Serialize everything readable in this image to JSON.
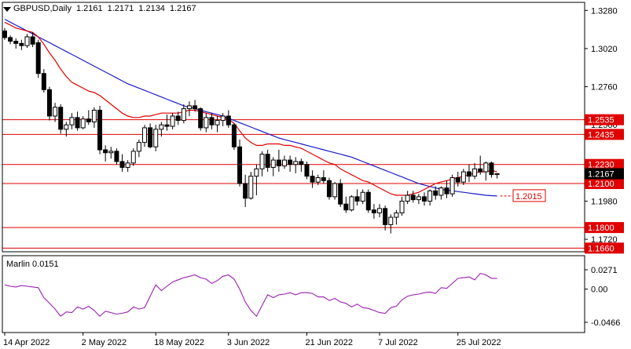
{
  "header": {
    "symbol_tf": "GBPUSD,Daily",
    "open": "1.2161",
    "high": "1.2171",
    "low": "1.2134",
    "close": "1.2167"
  },
  "oscillator": {
    "name": "Marlin",
    "value": "0.0151"
  },
  "colors": {
    "bull": "#000000",
    "bear": "#000000",
    "ma_fast": "#e00000",
    "ma_slow": "#1a1acc",
    "level": "#e00000",
    "osc": "#9b1fb0",
    "label_bg": "#e00000"
  },
  "chart_data": [
    {
      "type": "candlestick",
      "title": "GBPUSD,Daily",
      "ylim": [
        1.1635,
        1.3335
      ],
      "y_ticks": [
        "1.3280",
        "1.3020",
        "1.2760",
        "1.2500",
        "1.1980",
        "1.1720"
      ],
      "x_tick_labels": [
        "14 Apr 2022",
        "2 May 2022",
        "18 May 2022",
        "3 Jun 2022",
        "21 Jun 2022",
        "7 Jul 2022",
        "25 Jul 2022"
      ],
      "x_tick_index": [
        0,
        14,
        27,
        40,
        54,
        67,
        81
      ],
      "levels": [
        {
          "value": 1.2535,
          "label": "1.2535"
        },
        {
          "value": 1.2435,
          "label": "1.2435"
        },
        {
          "value": 1.223,
          "label": "1.2230"
        },
        {
          "value": 1.21,
          "label": "1.2100"
        },
        {
          "value": 1.18,
          "label": "1.1800"
        },
        {
          "value": 1.166,
          "label": "1.1660"
        }
      ],
      "price_label": {
        "value": 1.2167,
        "label": "1.2167"
      },
      "ma_label": {
        "value": 1.2015,
        "label": "1.2015"
      },
      "candles": [
        [
          1.314,
          1.316,
          1.308,
          1.3095
        ],
        [
          1.3095,
          1.311,
          1.305,
          1.307
        ],
        [
          1.307,
          1.309,
          1.302,
          1.3055
        ],
        [
          1.3055,
          1.308,
          1.301,
          1.304
        ],
        [
          1.304,
          1.312,
          1.3025,
          1.31
        ],
        [
          1.31,
          1.313,
          1.303,
          1.305
        ],
        [
          1.306,
          1.308,
          1.282,
          1.285
        ],
        [
          1.285,
          1.288,
          1.272,
          1.274
        ],
        [
          1.274,
          1.276,
          1.253,
          1.256
        ],
        [
          1.256,
          1.265,
          1.252,
          1.262
        ],
        [
          1.262,
          1.264,
          1.244,
          1.247
        ],
        [
          1.247,
          1.252,
          1.242,
          1.25
        ],
        [
          1.25,
          1.258,
          1.247,
          1.255
        ],
        [
          1.255,
          1.259,
          1.246,
          1.248
        ],
        [
          1.248,
          1.256,
          1.247,
          1.254
        ],
        [
          1.254,
          1.26,
          1.25,
          1.252
        ],
        [
          1.252,
          1.262,
          1.248,
          1.26
        ],
        [
          1.26,
          1.263,
          1.23,
          1.233
        ],
        [
          1.233,
          1.236,
          1.225,
          1.231
        ],
        [
          1.231,
          1.235,
          1.227,
          1.232
        ],
        [
          1.232,
          1.234,
          1.223,
          1.225
        ],
        [
          1.225,
          1.23,
          1.218,
          1.221
        ],
        [
          1.221,
          1.226,
          1.218,
          1.224
        ],
        [
          1.224,
          1.234,
          1.222,
          1.232
        ],
        [
          1.232,
          1.24,
          1.228,
          1.238
        ],
        [
          1.238,
          1.25,
          1.235,
          1.248
        ],
        [
          1.248,
          1.251,
          1.234,
          1.235
        ],
        [
          1.235,
          1.25,
          1.232,
          1.247
        ],
        [
          1.247,
          1.252,
          1.242,
          1.25
        ],
        [
          1.25,
          1.257,
          1.246,
          1.249
        ],
        [
          1.249,
          1.258,
          1.247,
          1.256
        ],
        [
          1.256,
          1.259,
          1.25,
          1.253
        ],
        [
          1.253,
          1.264,
          1.251,
          1.261
        ],
        [
          1.261,
          1.266,
          1.256,
          1.263
        ],
        [
          1.263,
          1.267,
          1.259,
          1.261
        ],
        [
          1.261,
          1.262,
          1.246,
          1.248
        ],
        [
          1.248,
          1.258,
          1.245,
          1.255
        ],
        [
          1.255,
          1.258,
          1.247,
          1.25
        ],
        [
          1.25,
          1.256,
          1.245,
          1.253
        ],
        [
          1.253,
          1.258,
          1.249,
          1.256
        ],
        [
          1.256,
          1.26,
          1.248,
          1.25
        ],
        [
          1.25,
          1.251,
          1.233,
          1.235
        ],
        [
          1.235,
          1.24,
          1.208,
          1.21
        ],
        [
          1.21,
          1.216,
          1.194,
          1.2
        ],
        [
          1.2,
          1.218,
          1.199,
          1.215
        ],
        [
          1.215,
          1.223,
          1.202,
          1.22
        ],
        [
          1.22,
          1.232,
          1.215,
          1.23
        ],
        [
          1.23,
          1.233,
          1.218,
          1.221
        ],
        [
          1.221,
          1.228,
          1.215,
          1.226
        ],
        [
          1.226,
          1.233,
          1.218,
          1.222
        ],
        [
          1.222,
          1.229,
          1.22,
          1.226
        ],
        [
          1.226,
          1.229,
          1.218,
          1.223
        ],
        [
          1.223,
          1.228,
          1.217,
          1.225
        ],
        [
          1.225,
          1.227,
          1.218,
          1.223
        ],
        [
          1.223,
          1.225,
          1.213,
          1.215
        ],
        [
          1.215,
          1.219,
          1.207,
          1.211
        ],
        [
          1.211,
          1.216,
          1.209,
          1.214
        ],
        [
          1.214,
          1.219,
          1.21,
          1.212
        ],
        [
          1.212,
          1.214,
          1.199,
          1.201
        ],
        [
          1.201,
          1.211,
          1.199,
          1.21
        ],
        [
          1.21,
          1.213,
          1.194,
          1.196
        ],
        [
          1.196,
          1.201,
          1.19,
          1.192
        ],
        [
          1.192,
          1.202,
          1.191,
          1.201
        ],
        [
          1.201,
          1.206,
          1.195,
          1.198
        ],
        [
          1.198,
          1.206,
          1.196,
          1.204
        ],
        [
          1.204,
          1.206,
          1.19,
          1.192
        ],
        [
          1.192,
          1.196,
          1.186,
          1.19
        ],
        [
          1.19,
          1.196,
          1.187,
          1.193
        ],
        [
          1.193,
          1.195,
          1.178,
          1.182
        ],
        [
          1.182,
          1.189,
          1.176,
          1.187
        ],
        [
          1.187,
          1.192,
          1.182,
          1.19
        ],
        [
          1.19,
          1.201,
          1.188,
          1.198
        ],
        [
          1.198,
          1.205,
          1.196,
          1.202
        ],
        [
          1.202,
          1.205,
          1.197,
          1.199
        ],
        [
          1.199,
          1.203,
          1.196,
          1.201
        ],
        [
          1.201,
          1.204,
          1.195,
          1.198
        ],
        [
          1.198,
          1.206,
          1.195,
          1.205
        ],
        [
          1.205,
          1.208,
          1.199,
          1.202
        ],
        [
          1.202,
          1.208,
          1.199,
          1.207
        ],
        [
          1.207,
          1.212,
          1.2,
          1.203
        ],
        [
          1.203,
          1.216,
          1.201,
          1.214
        ],
        [
          1.214,
          1.218,
          1.208,
          1.211
        ],
        [
          1.211,
          1.22,
          1.209,
          1.218
        ],
        [
          1.218,
          1.223,
          1.211,
          1.215
        ],
        [
          1.215,
          1.224,
          1.213,
          1.22
        ],
        [
          1.22,
          1.229,
          1.216,
          1.218
        ],
        [
          1.218,
          1.225,
          1.212,
          1.224
        ],
        [
          1.224,
          1.225,
          1.214,
          1.2161
        ],
        [
          1.2161,
          1.2171,
          1.2134,
          1.2167
        ]
      ],
      "ma_fast": [
        1.32,
        1.318,
        1.316,
        1.315,
        1.314,
        1.313,
        1.31,
        1.305,
        1.299,
        1.294,
        1.288,
        1.283,
        1.279,
        1.277,
        1.275,
        1.273,
        1.272,
        1.27,
        1.267,
        1.264,
        1.261,
        1.258,
        1.256,
        1.255,
        1.255,
        1.256,
        1.256,
        1.257,
        1.258,
        1.258,
        1.258,
        1.258,
        1.259,
        1.26,
        1.26,
        1.259,
        1.258,
        1.257,
        1.256,
        1.255,
        1.254,
        1.251,
        1.246,
        1.241,
        1.238,
        1.236,
        1.236,
        1.237,
        1.237,
        1.237,
        1.236,
        1.236,
        1.235,
        1.234,
        1.232,
        1.23,
        1.228,
        1.226,
        1.224,
        1.223,
        1.22,
        1.218,
        1.216,
        1.214,
        1.212,
        1.211,
        1.209,
        1.207,
        1.205,
        1.203,
        1.202,
        1.202,
        1.202,
        1.203,
        1.204,
        1.206,
        1.208,
        1.21,
        1.211,
        1.212,
        1.213,
        1.214,
        1.215,
        1.216,
        1.217,
        1.218,
        1.218,
        1.219,
        1.218
      ],
      "ma_slow": [
        1.322,
        1.32,
        1.318,
        1.316,
        1.314,
        1.312,
        1.31,
        1.308,
        1.306,
        1.304,
        1.302,
        1.3,
        1.298,
        1.296,
        1.294,
        1.292,
        1.29,
        1.288,
        1.286,
        1.284,
        1.282,
        1.28,
        1.278,
        1.2765,
        1.275,
        1.2735,
        1.272,
        1.2705,
        1.269,
        1.2675,
        1.266,
        1.2645,
        1.263,
        1.262,
        1.261,
        1.26,
        1.259,
        1.258,
        1.257,
        1.256,
        1.2545,
        1.253,
        1.2515,
        1.25,
        1.2485,
        1.247,
        1.2455,
        1.244,
        1.2425,
        1.241,
        1.24,
        1.239,
        1.238,
        1.237,
        1.236,
        1.235,
        1.234,
        1.233,
        1.232,
        1.231,
        1.23,
        1.229,
        1.228,
        1.2265,
        1.225,
        1.2235,
        1.222,
        1.2205,
        1.219,
        1.2175,
        1.216,
        1.2145,
        1.213,
        1.2115,
        1.21,
        1.209,
        1.208,
        1.207,
        1.206,
        1.2055,
        1.205,
        1.2045,
        1.204,
        1.2035,
        1.203,
        1.2025,
        1.202,
        1.2017,
        1.2015
      ]
    },
    {
      "type": "line",
      "title": "Marlin 0.0151",
      "ylim": [
        -0.0466,
        0.0271
      ],
      "y_ticks": [
        "0.0271",
        "0.00",
        "-0.0466"
      ],
      "series": [
        {
          "name": "Marlin",
          "values": [
            0.006,
            0.004,
            0.003,
            0.005,
            0.004,
            0.003,
            0.002,
            -0.012,
            -0.02,
            -0.028,
            -0.038,
            -0.032,
            -0.033,
            -0.025,
            -0.028,
            -0.024,
            -0.03,
            -0.038,
            -0.031,
            -0.033,
            -0.035,
            -0.034,
            -0.032,
            -0.025,
            -0.028,
            -0.026,
            -0.01,
            0.006,
            -0.002,
            0.004,
            0.01,
            0.013,
            0.016,
            0.018,
            0.02,
            0.016,
            0.014,
            0.008,
            0.012,
            0.018,
            0.02,
            0.014,
            0.0,
            -0.018,
            -0.03,
            -0.038,
            -0.023,
            -0.008,
            -0.012,
            -0.008,
            -0.007,
            -0.005,
            -0.008,
            -0.005,
            -0.005,
            -0.006,
            -0.011,
            -0.011,
            -0.016,
            -0.013,
            -0.018,
            -0.02,
            -0.025,
            -0.021,
            -0.026,
            -0.027,
            -0.03,
            -0.033,
            -0.034,
            -0.026,
            -0.024,
            -0.015,
            -0.01,
            -0.008,
            -0.007,
            -0.005,
            -0.004,
            -0.006,
            0.002,
            0.001,
            0.008,
            0.015,
            0.016,
            0.017,
            0.013,
            0.022,
            0.02,
            0.0151,
            0.0151
          ]
        }
      ]
    }
  ]
}
